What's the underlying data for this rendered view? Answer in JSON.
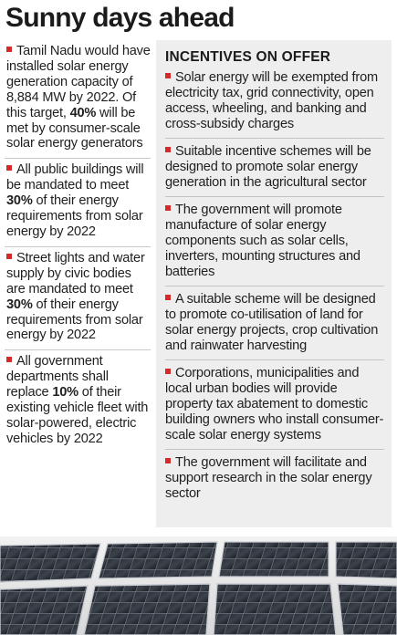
{
  "title": "Sunny days ahead",
  "left_bullets": [
    {
      "parts": [
        "Tamil Nadu would have installed solar energy generation capacity of 8,884 MW by 2022. Of this target, ",
        "40%",
        " will be met by consumer-scale solar energy generators"
      ]
    },
    {
      "parts": [
        "All public buildings will be mandated to meet ",
        "30%",
        " of their energy requirements from solar energy by 2022"
      ]
    },
    {
      "parts": [
        "Street lights and water supply by civic bodies are mandated to meet ",
        "30%",
        " of their energy requirements from solar energy by 2022"
      ]
    },
    {
      "parts": [
        "All government departments shall replace ",
        "10%",
        " of their existing vehicle fleet with solar-powered, electric vehicles by 2022"
      ]
    }
  ],
  "incentives": {
    "heading": "INCENTIVES ON OFFER",
    "items": [
      "Solar energy will be exempted from electricity tax, grid connectivity, open access, wheeling, and banking and cross-subsidy charges",
      "Suitable incentive schemes will be designed to promote solar energy generation in the agricultural sector",
      "The government will promote manufacture of solar energy components such as solar cells, inverters, mounting structures and batteries",
      "A suitable scheme will be designed to promote co-utilisation of land for solar energy projects, crop cultivation and rainwater harvesting",
      "Corporations, municipalities and local urban bodies will provide property tax abatement to domestic building owners who install consumer-scale solar energy systems",
      "The government will facilitate and support research in the solar energy sector"
    ]
  },
  "colors": {
    "bullet": "#d42a2a",
    "box_bg": "#eeeeee"
  },
  "image": {
    "subject": "solar-panels-photo"
  }
}
